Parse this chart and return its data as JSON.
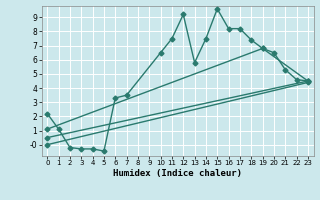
{
  "title": "",
  "xlabel": "Humidex (Indice chaleur)",
  "bg_color": "#cce8ec",
  "grid_color": "#ffffff",
  "line_color": "#2a7a6e",
  "xlim": [
    -0.5,
    23.5
  ],
  "ylim": [
    -0.8,
    9.8
  ],
  "xticks": [
    0,
    1,
    2,
    3,
    4,
    5,
    6,
    7,
    8,
    9,
    10,
    11,
    12,
    13,
    14,
    15,
    16,
    17,
    18,
    19,
    20,
    21,
    22,
    23
  ],
  "yticks": [
    0,
    1,
    2,
    3,
    4,
    5,
    6,
    7,
    8,
    9
  ],
  "ytick_labels": [
    "-0",
    "1",
    "2",
    "3",
    "4",
    "5",
    "6",
    "7",
    "8",
    "9"
  ],
  "series1_x": [
    0,
    1,
    2,
    3,
    4,
    5,
    6,
    7,
    10,
    11,
    12,
    13,
    14,
    15,
    16,
    17,
    18,
    19,
    20,
    21,
    22,
    23
  ],
  "series1_y": [
    2.2,
    1.1,
    -0.2,
    -0.3,
    -0.3,
    -0.45,
    3.3,
    3.5,
    6.5,
    7.5,
    9.2,
    5.8,
    7.5,
    9.6,
    8.2,
    8.2,
    7.4,
    6.8,
    6.5,
    5.3,
    4.6,
    4.5
  ],
  "series2_x": [
    0,
    19,
    23
  ],
  "series2_y": [
    1.1,
    6.8,
    4.5
  ],
  "series3_x": [
    0,
    23
  ],
  "series3_y": [
    0.5,
    4.5
  ],
  "series4_x": [
    0,
    23
  ],
  "series4_y": [
    0.0,
    4.4
  ],
  "marker_size": 2.5,
  "line_width": 1.0
}
